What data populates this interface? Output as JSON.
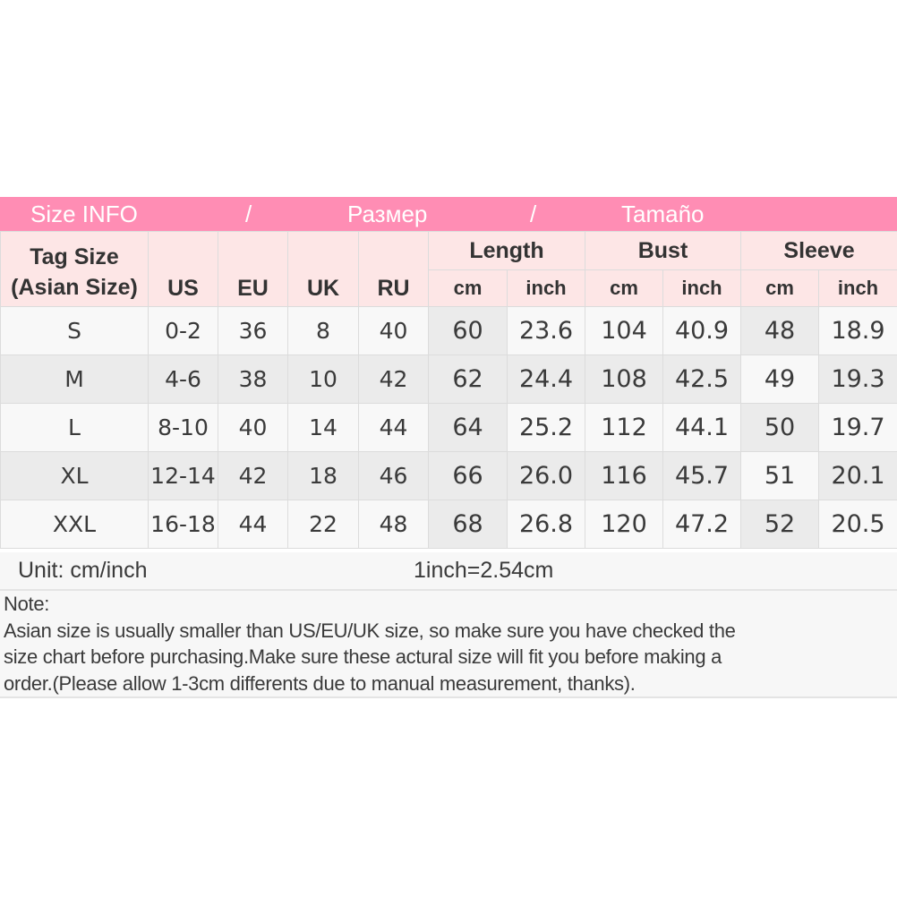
{
  "banner": {
    "title_en": "Size INFO",
    "sep1": "/",
    "title_ru": "Размер",
    "sep2": "/",
    "title_es": "Tamaño",
    "color": "#ff8db4"
  },
  "header": {
    "tag_size": "Tag Size",
    "tag_size_sub": "(Asian Size)",
    "us": "US",
    "eu": "EU",
    "uk": "UK",
    "ru": "RU",
    "length": "Length",
    "bust": "Bust",
    "sleeve": "Sleeve",
    "cm": "cm",
    "inch": "inch"
  },
  "rows": [
    [
      "S",
      "0-2",
      "36",
      "8",
      "40",
      "60",
      "23.6",
      "104",
      "40.9",
      "48",
      "18.9"
    ],
    [
      "M",
      "4-6",
      "38",
      "10",
      "42",
      "62",
      "24.4",
      "108",
      "42.5",
      "49",
      "19.3"
    ],
    [
      "L",
      "8-10",
      "40",
      "14",
      "44",
      "64",
      "25.2",
      "112",
      "44.1",
      "50",
      "19.7"
    ],
    [
      "XL",
      "12-14",
      "42",
      "18",
      "46",
      "66",
      "26.0",
      "116",
      "45.7",
      "51",
      "20.1"
    ],
    [
      "XXL",
      "16-18",
      "44",
      "22",
      "48",
      "68",
      "26.8",
      "120",
      "47.2",
      "52",
      "20.5"
    ]
  ],
  "unit": {
    "label": "Unit: cm/inch",
    "conversion": "1inch=2.54cm"
  },
  "note": {
    "title": "Note:",
    "lines": [
      "Asian size is usually smaller than US/EU/UK size, so make sure you have checked the",
      "size chart before purchasing.Make sure these actural size will fit you before making a",
      "order.(Please allow 1-3cm differents due to manual measurement, thanks)."
    ]
  }
}
